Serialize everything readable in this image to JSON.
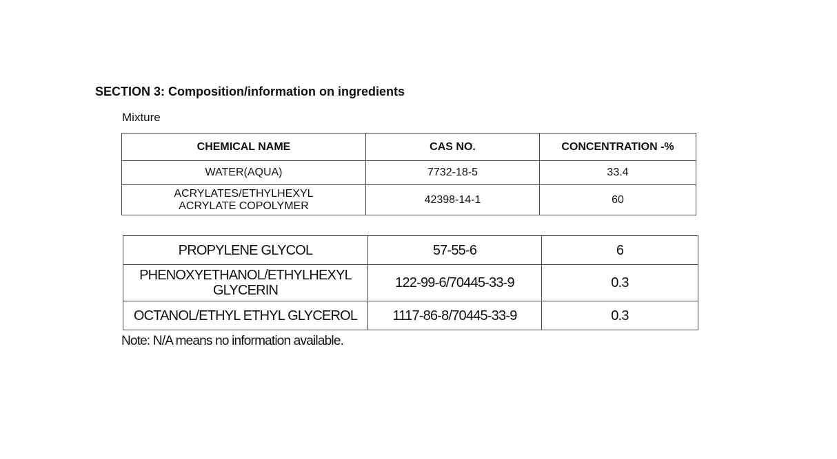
{
  "section_title": "SECTION 3: Composition/information on ingredients",
  "subtitle": "Mixture",
  "table1": {
    "headers": [
      "CHEMICAL NAME",
      "CAS NO.",
      "CONCENTRATION -%"
    ],
    "rows": [
      [
        "WATER(AQUA)",
        "7732-18-5",
        "33.4"
      ],
      [
        "ACRYLATES/ETHYLHEXYL ACRYLATE COPOLYMER",
        "42398-14-1",
        "60"
      ]
    ]
  },
  "table2": {
    "rows": [
      [
        "PROPYLENE GLYCOL",
        "57-55-6",
        "6"
      ],
      [
        "PHENOXYETHANOL/ETHYLHEXYL GLYCERIN",
        "122-99-6/70445-33-9",
        "0.3"
      ],
      [
        "OCTANOL/ETHYL ETHYL GLYCEROL",
        "1117-86-8/70445-33-9",
        "0.3"
      ]
    ]
  },
  "note": "Note: N/A means no information available."
}
